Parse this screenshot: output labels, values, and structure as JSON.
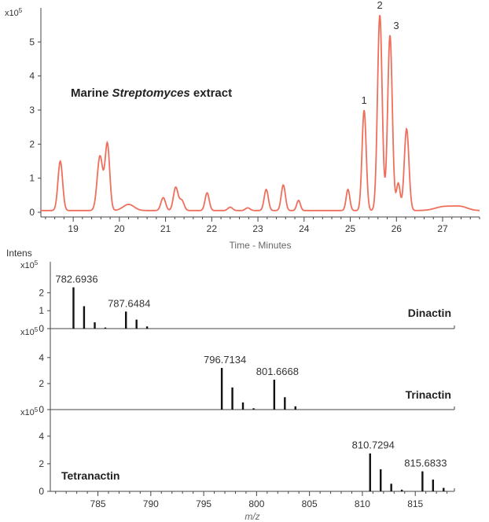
{
  "colors": {
    "chromatogram": "#ef6f5c",
    "spectrum": "#111111",
    "axis": "#444444",
    "text": "#333333"
  },
  "chart_data": [
    {
      "type": "line",
      "id": "chromatogram",
      "title": "Marine Streptomyces extract",
      "title_parts": [
        "Marine ",
        "Streptomyces",
        " extract"
      ],
      "xlabel": "Time - Minutes",
      "ylabel": "",
      "y_multiplier": "x10",
      "y_multiplier_exp": "5",
      "xlim": [
        18.3,
        27.8
      ],
      "ylim": [
        0,
        6
      ],
      "x_ticks": [
        "19",
        "20",
        "21",
        "22",
        "23",
        "24",
        "25",
        "26",
        "27"
      ],
      "y_ticks": [
        "0",
        "1",
        "2",
        "3",
        "4",
        "5"
      ],
      "grid": false,
      "baseline": 0.05,
      "peaks": [
        {
          "x": 18.72,
          "y": 1.45,
          "w": 0.05
        },
        {
          "x": 19.58,
          "y": 1.6,
          "w": 0.06
        },
        {
          "x": 19.74,
          "y": 1.95,
          "w": 0.05
        },
        {
          "x": 20.2,
          "y": 0.18,
          "w": 0.12
        },
        {
          "x": 20.95,
          "y": 0.38,
          "w": 0.05
        },
        {
          "x": 21.22,
          "y": 0.68,
          "w": 0.05
        },
        {
          "x": 21.35,
          "y": 0.3,
          "w": 0.05
        },
        {
          "x": 21.9,
          "y": 0.52,
          "w": 0.045
        },
        {
          "x": 22.4,
          "y": 0.1,
          "w": 0.05
        },
        {
          "x": 22.78,
          "y": 0.08,
          "w": 0.05
        },
        {
          "x": 23.18,
          "y": 0.62,
          "w": 0.045
        },
        {
          "x": 23.55,
          "y": 0.75,
          "w": 0.045
        },
        {
          "x": 23.88,
          "y": 0.3,
          "w": 0.04
        },
        {
          "x": 24.95,
          "y": 0.62,
          "w": 0.04
        },
        {
          "x": 25.3,
          "y": 2.95,
          "w": 0.045
        },
        {
          "x": 25.64,
          "y": 5.75,
          "w": 0.05
        },
        {
          "x": 25.86,
          "y": 5.15,
          "w": 0.05
        },
        {
          "x": 26.04,
          "y": 0.8,
          "w": 0.04
        },
        {
          "x": 26.22,
          "y": 2.4,
          "w": 0.05
        },
        {
          "x": 27.05,
          "y": 0.12,
          "w": 0.2
        },
        {
          "x": 27.4,
          "y": 0.1,
          "w": 0.15
        }
      ],
      "annotations": [
        {
          "label": "1",
          "x": 25.3,
          "y": 2.95
        },
        {
          "label": "2",
          "x": 25.64,
          "y": 5.75
        },
        {
          "label": "3",
          "x": 25.86,
          "y": 5.15
        }
      ]
    },
    {
      "type": "bar",
      "id": "dinactin",
      "name": "Dinactin",
      "ylabel": "Intens",
      "y_multiplier": "x10",
      "y_multiplier_exp": "5",
      "xlim": [
        780.5,
        818.7
      ],
      "ylim": [
        0,
        3.2
      ],
      "y_ticks": [
        "0",
        "1",
        "2"
      ],
      "sticks": [
        {
          "mz": 782.69,
          "i": 2.3
        },
        {
          "mz": 783.69,
          "i": 1.25
        },
        {
          "mz": 784.7,
          "i": 0.35
        },
        {
          "mz": 785.7,
          "i": 0.06
        },
        {
          "mz": 787.65,
          "i": 0.95
        },
        {
          "mz": 788.65,
          "i": 0.5
        },
        {
          "mz": 789.65,
          "i": 0.12
        }
      ],
      "labels": [
        {
          "text": "782.6936",
          "mz": 782.69,
          "i": 2.3
        },
        {
          "text": "787.6484",
          "mz": 787.65,
          "i": 0.95
        }
      ]
    },
    {
      "type": "bar",
      "id": "trinactin",
      "name": "Trinactin",
      "ylabel": "",
      "y_multiplier": "x10",
      "y_multiplier_exp": "5",
      "xlim": [
        780.5,
        818.7
      ],
      "ylim": [
        0,
        5.5
      ],
      "y_ticks": [
        "0",
        "2",
        "4"
      ],
      "sticks": [
        {
          "mz": 796.71,
          "i": 3.2
        },
        {
          "mz": 797.71,
          "i": 1.7
        },
        {
          "mz": 798.71,
          "i": 0.55
        },
        {
          "mz": 799.72,
          "i": 0.1
        },
        {
          "mz": 801.67,
          "i": 2.3
        },
        {
          "mz": 802.67,
          "i": 0.95
        },
        {
          "mz": 803.67,
          "i": 0.25
        }
      ],
      "labels": [
        {
          "text": "796.7134",
          "mz": 796.71,
          "i": 3.2
        },
        {
          "text": "801.6668",
          "mz": 801.67,
          "i": 2.3
        }
      ]
    },
    {
      "type": "bar",
      "id": "tetranactin",
      "name": "Tetranactin",
      "ylabel": "",
      "y_multiplier": "x10",
      "y_multiplier_exp": "5",
      "xlim": [
        780.5,
        818.7
      ],
      "ylim": [
        0,
        5.3
      ],
      "y_ticks": [
        "0",
        "2",
        "4"
      ],
      "xlabel": "m/z",
      "x_ticks": [
        "785",
        "790",
        "795",
        "800",
        "805",
        "810",
        "815"
      ],
      "sticks": [
        {
          "mz": 810.73,
          "i": 2.75
        },
        {
          "mz": 811.73,
          "i": 1.6
        },
        {
          "mz": 812.73,
          "i": 0.55
        },
        {
          "mz": 813.73,
          "i": 0.12
        },
        {
          "mz": 815.68,
          "i": 1.45
        },
        {
          "mz": 816.68,
          "i": 0.85
        },
        {
          "mz": 817.68,
          "i": 0.25
        }
      ],
      "labels": [
        {
          "text": "810.7294",
          "mz": 810.73,
          "i": 2.75
        },
        {
          "text": "815.6833",
          "mz": 815.68,
          "i": 1.45
        }
      ]
    }
  ]
}
